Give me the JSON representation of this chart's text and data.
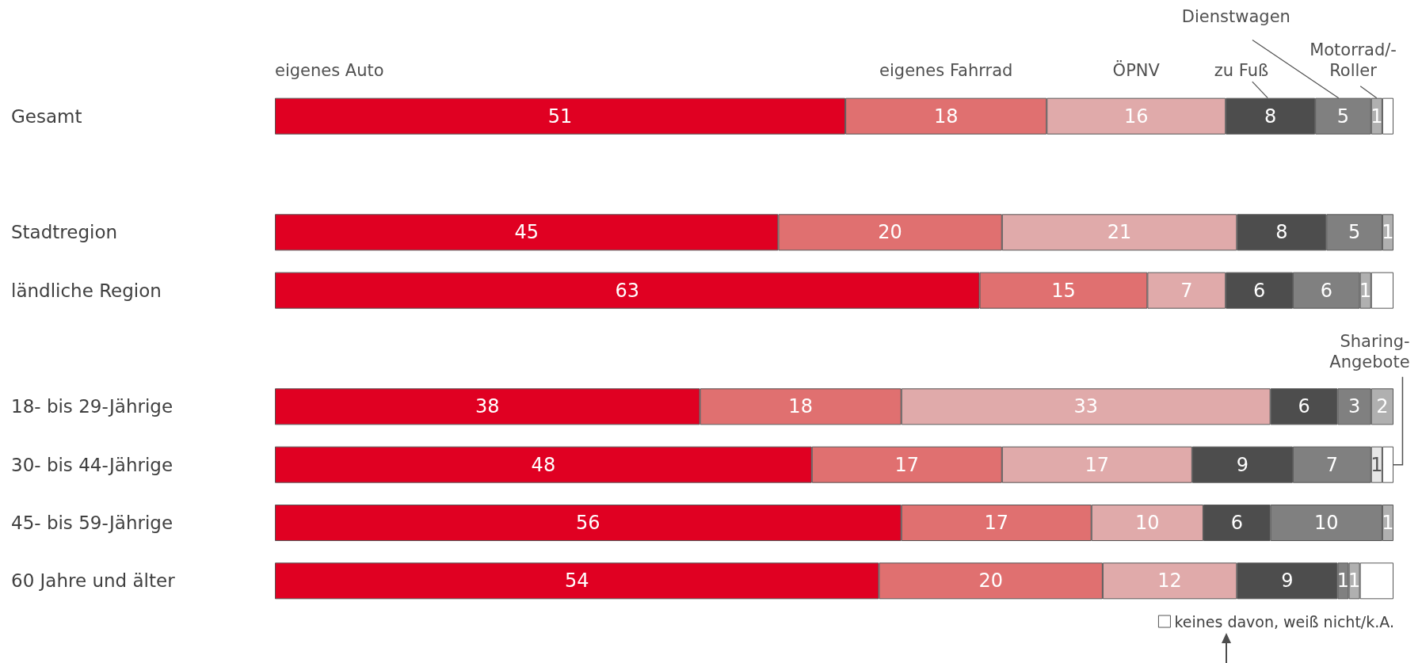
{
  "chart_data": {
    "type": "bar",
    "orientation": "horizontal",
    "stacked": true,
    "tick_labels": "y",
    "legend": "bottom right",
    "categories": [
      "Gesamt",
      null,
      "Stadtregion",
      "ländliche Region",
      null,
      "18- bis 29-Jährige",
      "30- bis 44-Jährige",
      "45- bis 59-Jährige",
      "60 Jahre und älter"
    ],
    "series": [
      {
        "name": "eigenes Auto",
        "color": "#e00022",
        "values": [
          51,
          null,
          45,
          63,
          null,
          38,
          48,
          56,
          54
        ],
        "value_labels": [
          "51",
          null,
          "45",
          "63",
          null,
          "38",
          "48",
          "56",
          "54"
        ]
      },
      {
        "name": "eigenes Fahrrad",
        "color": "#e07070",
        "values": [
          18,
          null,
          20,
          15,
          null,
          18,
          17,
          17,
          20
        ],
        "value_labels": [
          "18",
          null,
          "20",
          "15",
          null,
          "18",
          "17",
          "17",
          "20"
        ]
      },
      {
        "name": "ÖPNV",
        "color": "#e0aaaa",
        "values": [
          16,
          null,
          21,
          7,
          null,
          33,
          17,
          10,
          12
        ],
        "value_labels": [
          "16",
          null,
          "21",
          "7",
          null,
          "33",
          "17",
          "10",
          "12"
        ]
      },
      {
        "name": "zu Fuß",
        "color": "#4d4d4d",
        "values": [
          8,
          null,
          8,
          6,
          null,
          6,
          9,
          6,
          9
        ],
        "value_labels": [
          "8",
          null,
          "8",
          "6",
          null,
          "6",
          "9",
          "6",
          "9"
        ]
      },
      {
        "name": "Dienstwagen",
        "color": "#808080",
        "values": [
          5,
          null,
          5,
          6,
          null,
          3,
          7,
          10,
          1
        ],
        "value_labels": [
          "5",
          null,
          "5",
          "6",
          null,
          "3",
          "7",
          "10",
          "1"
        ]
      },
      {
        "name": "Motorrad/-\nRoller",
        "color": "#b0b0b0",
        "values": [
          1,
          null,
          1,
          1,
          null,
          2,
          null,
          1,
          1
        ],
        "value_labels": [
          "1",
          null,
          "1",
          "1",
          null,
          "2",
          null,
          "1",
          "1"
        ]
      },
      {
        "name": "Sharing-\nAngebote",
        "color": "#e6e6e6",
        "values": [
          null,
          null,
          null,
          null,
          null,
          null,
          1,
          null,
          null
        ],
        "value_labels": [
          null,
          null,
          null,
          null,
          null,
          null,
          "1",
          null,
          null
        ]
      },
      {
        "name": "keines davon, weiß nicht/k.A.",
        "color": "#ffffff",
        "values": [
          1,
          null,
          null,
          2,
          null,
          null,
          1,
          null,
          3
        ]
      }
    ]
  }
}
